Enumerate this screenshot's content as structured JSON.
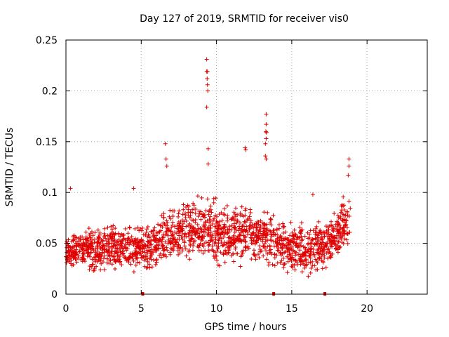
{
  "chart_data": {
    "type": "scatter",
    "title": "Day 127 of 2019, SRMTID for receiver vis0",
    "xlabel": "GPS time / hours",
    "ylabel": "SRMTID / TECUs",
    "xlim": [
      0,
      24
    ],
    "ylim": [
      0,
      0.25
    ],
    "x_ticks": [
      0,
      5,
      10,
      15,
      20
    ],
    "y_ticks": [
      0,
      0.05,
      0.1,
      0.15,
      0.2,
      0.25
    ],
    "x_tick_labels": [
      "0",
      "5",
      "10",
      "15",
      "20"
    ],
    "y_tick_labels": [
      "0",
      "0.05",
      "0.1",
      "0.15",
      "0.2",
      "0.25"
    ],
    "grid": true,
    "marker": "+",
    "color": "#e00000",
    "gap_markers_x": [
      5.1,
      13.8,
      17.2
    ],
    "peaks": [
      {
        "x": 0.3,
        "y": 0.104
      },
      {
        "x": 4.5,
        "y": 0.104
      },
      {
        "x": 6.6,
        "y": 0.148
      },
      {
        "x": 6.65,
        "y": 0.133
      },
      {
        "x": 6.7,
        "y": 0.126
      },
      {
        "x": 9.35,
        "y": 0.231
      },
      {
        "x": 9.35,
        "y": 0.219
      },
      {
        "x": 9.4,
        "y": 0.219
      },
      {
        "x": 9.38,
        "y": 0.212
      },
      {
        "x": 9.4,
        "y": 0.206
      },
      {
        "x": 9.42,
        "y": 0.2
      },
      {
        "x": 9.35,
        "y": 0.184
      },
      {
        "x": 9.45,
        "y": 0.143
      },
      {
        "x": 9.45,
        "y": 0.128
      },
      {
        "x": 11.9,
        "y": 0.144
      },
      {
        "x": 11.95,
        "y": 0.142
      },
      {
        "x": 13.3,
        "y": 0.177
      },
      {
        "x": 13.3,
        "y": 0.167
      },
      {
        "x": 13.28,
        "y": 0.16
      },
      {
        "x": 13.32,
        "y": 0.159
      },
      {
        "x": 13.3,
        "y": 0.153
      },
      {
        "x": 13.25,
        "y": 0.148
      },
      {
        "x": 13.25,
        "y": 0.136
      },
      {
        "x": 13.3,
        "y": 0.133
      },
      {
        "x": 16.4,
        "y": 0.098
      },
      {
        "x": 18.8,
        "y": 0.133
      },
      {
        "x": 18.8,
        "y": 0.126
      },
      {
        "x": 18.75,
        "y": 0.117
      }
    ],
    "envelope": [
      {
        "x": 0.0,
        "mean": 0.042,
        "spread": 0.012
      },
      {
        "x": 1.0,
        "mean": 0.045,
        "spread": 0.016
      },
      {
        "x": 2.0,
        "mean": 0.044,
        "spread": 0.018
      },
      {
        "x": 3.0,
        "mean": 0.046,
        "spread": 0.018
      },
      {
        "x": 4.0,
        "mean": 0.045,
        "spread": 0.018
      },
      {
        "x": 5.0,
        "mean": 0.044,
        "spread": 0.017
      },
      {
        "x": 6.0,
        "mean": 0.05,
        "spread": 0.02
      },
      {
        "x": 7.0,
        "mean": 0.058,
        "spread": 0.022
      },
      {
        "x": 8.0,
        "mean": 0.062,
        "spread": 0.024
      },
      {
        "x": 9.0,
        "mean": 0.064,
        "spread": 0.024
      },
      {
        "x": 10.0,
        "mean": 0.061,
        "spread": 0.024
      },
      {
        "x": 11.0,
        "mean": 0.058,
        "spread": 0.022
      },
      {
        "x": 12.0,
        "mean": 0.058,
        "spread": 0.022
      },
      {
        "x": 13.0,
        "mean": 0.058,
        "spread": 0.022
      },
      {
        "x": 14.0,
        "mean": 0.05,
        "spread": 0.02
      },
      {
        "x": 15.0,
        "mean": 0.046,
        "spread": 0.02
      },
      {
        "x": 16.0,
        "mean": 0.045,
        "spread": 0.02
      },
      {
        "x": 17.0,
        "mean": 0.048,
        "spread": 0.02
      },
      {
        "x": 18.0,
        "mean": 0.058,
        "spread": 0.022
      },
      {
        "x": 18.9,
        "mean": 0.075,
        "spread": 0.024
      }
    ]
  }
}
